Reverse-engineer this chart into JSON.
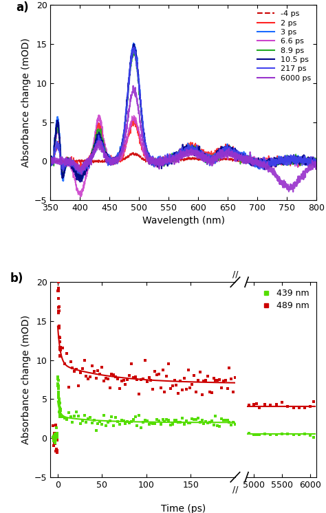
{
  "panel_a": {
    "xlabel": "Wavelength (nm)",
    "ylabel": "Absorbance change (mOD)",
    "xlim": [
      350,
      800
    ],
    "ylim": [
      -5,
      20
    ],
    "yticks": [
      -5,
      0,
      5,
      10,
      15,
      20
    ],
    "xticks": [
      350,
      400,
      450,
      500,
      550,
      600,
      650,
      700,
      750,
      800
    ],
    "curves": [
      {
        "label": "-4 ps",
        "color": "#cc0000",
        "linestyle": "dashed",
        "lw": 1.2,
        "peak490": 0.95,
        "peak430": 0.0,
        "dip400": 0.0,
        "peak590": 0.3,
        "peak645": 0.25,
        "uv360": 0.0,
        "noise": 0.08
      },
      {
        "label": "2 ps",
        "color": "#ff2222",
        "linestyle": "solid",
        "lw": 1.2,
        "peak490": 5.0,
        "peak430": 4.5,
        "dip400": 0.8,
        "peak590": 1.8,
        "peak645": 1.6,
        "uv360": 2.2,
        "noise": 0.25
      },
      {
        "label": "3 ps",
        "color": "#1a6aff",
        "linestyle": "solid",
        "lw": 1.5,
        "peak490": 14.7,
        "peak430": 3.0,
        "dip400": 2.0,
        "peak590": 1.5,
        "peak645": 1.4,
        "uv360": 5.5,
        "noise": 0.25
      },
      {
        "label": "6.6 ps",
        "color": "#cc44cc",
        "linestyle": "solid",
        "lw": 1.2,
        "peak490": 5.4,
        "peak430": 5.6,
        "dip400": 4.3,
        "peak590": 1.1,
        "peak645": 1.0,
        "uv360": 4.0,
        "noise": 0.22
      },
      {
        "label": "8.9 ps",
        "color": "#22aa22",
        "linestyle": "solid",
        "lw": 1.2,
        "peak490": 13.8,
        "peak430": 3.8,
        "dip400": 1.8,
        "peak590": 1.4,
        "peak645": 1.3,
        "uv360": 4.5,
        "noise": 0.25
      },
      {
        "label": "10.5 ps",
        "color": "#000088",
        "linestyle": "solid",
        "lw": 1.5,
        "peak490": 14.5,
        "peak430": 3.2,
        "dip400": 2.2,
        "peak590": 1.5,
        "peak645": 1.4,
        "uv360": 5.0,
        "noise": 0.25
      },
      {
        "label": "217 ps",
        "color": "#4444ee",
        "linestyle": "solid",
        "lw": 1.5,
        "peak490": 14.3,
        "peak430": 2.5,
        "dip400": 1.2,
        "peak590": 1.4,
        "peak645": 1.3,
        "uv360": 2.2,
        "noise": 0.25
      },
      {
        "label": "6000 ps",
        "color": "#9933cc",
        "linestyle": "solid",
        "lw": 1.5,
        "peak490": 9.0,
        "peak430": 2.2,
        "dip400": 0.9,
        "peak590": 1.0,
        "peak645": 1.0,
        "uv360": 0.0,
        "noise": 0.25,
        "neg760": 3.5
      }
    ]
  },
  "panel_b": {
    "xlabel": "Time (ps)",
    "ylabel": "Absorbance change (mOD)",
    "ylim": [
      -5,
      20
    ],
    "yticks": [
      -5,
      0,
      5,
      10,
      15,
      20
    ],
    "xticks_left": [
      0,
      50,
      100,
      150
    ],
    "xticks_right": [
      5000,
      5500,
      6000
    ],
    "xlim_left": [
      -8,
      200
    ],
    "xlim_right": [
      4880,
      6100
    ],
    "red_fit_C": 7.0,
    "red_fit_A1": 5.0,
    "red_fit_tau1": 3.0,
    "red_fit_A2": 2.5,
    "red_fit_tau2": 60.0,
    "red_late_level": 4.1,
    "grn_fit_C": 2.0,
    "grn_fit_A1": 2.0,
    "grn_fit_tau1": 2.5,
    "grn_fit_A2": 0.8,
    "grn_fit_tau2": 40.0,
    "grn_late_level": 0.5,
    "series": [
      {
        "label": "439 nm",
        "color": "#55dd00"
      },
      {
        "label": "489 nm",
        "color": "#cc0000"
      }
    ]
  }
}
